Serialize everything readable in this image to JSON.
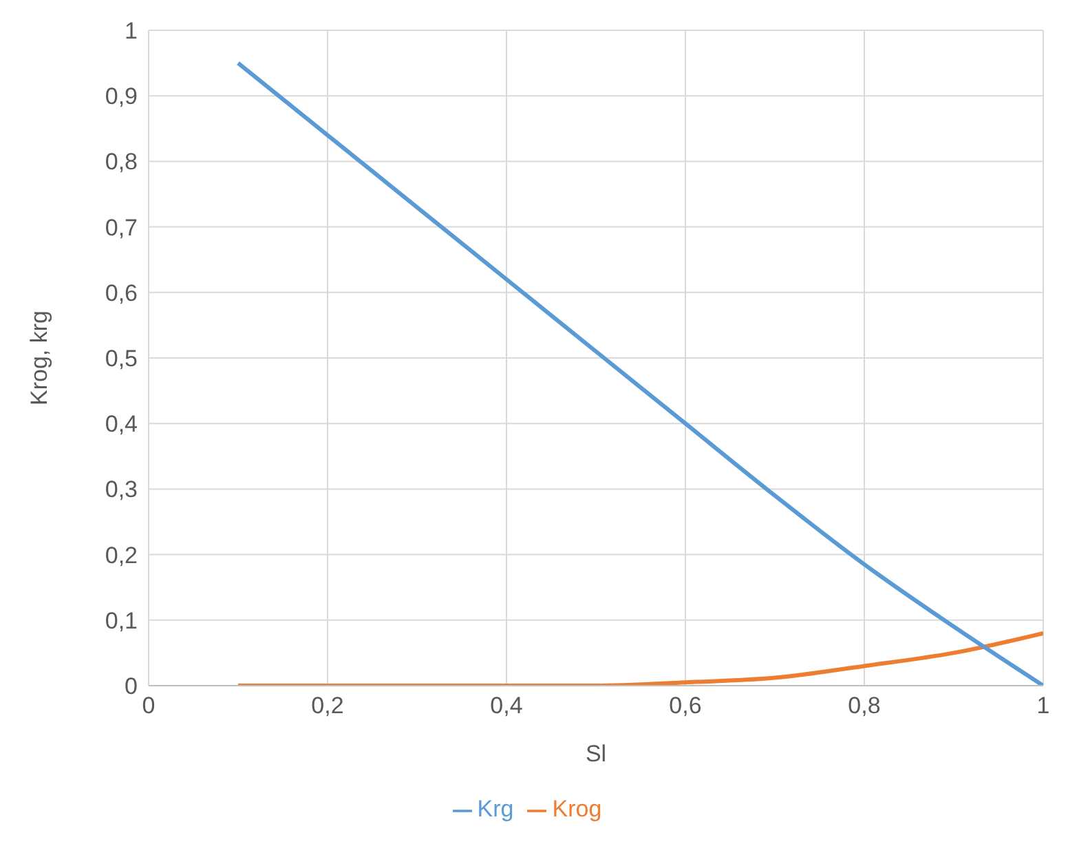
{
  "chart_data": {
    "type": "line",
    "xlabel": "Sl",
    "ylabel": "Krog, krg",
    "x": [
      0.1,
      0.2,
      0.3,
      0.4,
      0.5,
      0.6,
      0.7,
      0.8,
      0.9,
      1.0
    ],
    "series": [
      {
        "name": "Krog",
        "color": "#ed7d31",
        "values": [
          0,
          0,
          0,
          0,
          0,
          0.005,
          0.012,
          0.03,
          0.05,
          0.08
        ]
      },
      {
        "name": "Krg",
        "color": "#5b9bd5",
        "values": [
          0.95,
          0.84,
          0.73,
          0.62,
          0.51,
          0.4,
          0.29,
          0.185,
          0.09,
          0.0
        ]
      }
    ],
    "xlim": [
      0,
      1
    ],
    "xticks": [
      0,
      {
        "value": 0.2,
        "label": "0,2"
      },
      {
        "value": 0.4,
        "label": "0,4"
      },
      {
        "value": 0.6,
        "label": "0,6"
      },
      {
        "value": 0.8,
        "label": "0,8"
      },
      {
        "value": 1,
        "label": "1"
      }
    ],
    "ylim": [
      0,
      1
    ],
    "yticks": [
      0,
      {
        "value": 0.1,
        "label": "0,1"
      },
      {
        "value": 0.2,
        "label": "0,2"
      },
      {
        "value": 0.3,
        "label": "0,3"
      },
      {
        "value": 0.4,
        "label": "0,4"
      },
      {
        "value": 0.5,
        "label": "0,5"
      },
      {
        "value": 0.6,
        "label": "0,6"
      },
      {
        "value": 0.7,
        "label": "0,7"
      },
      {
        "value": 0.8,
        "label": "0,8"
      },
      {
        "value": 0.9,
        "label": "0,9"
      },
      1
    ],
    "grid": true,
    "legend": "bottom",
    "marker": "none",
    "line_style": "solid"
  }
}
